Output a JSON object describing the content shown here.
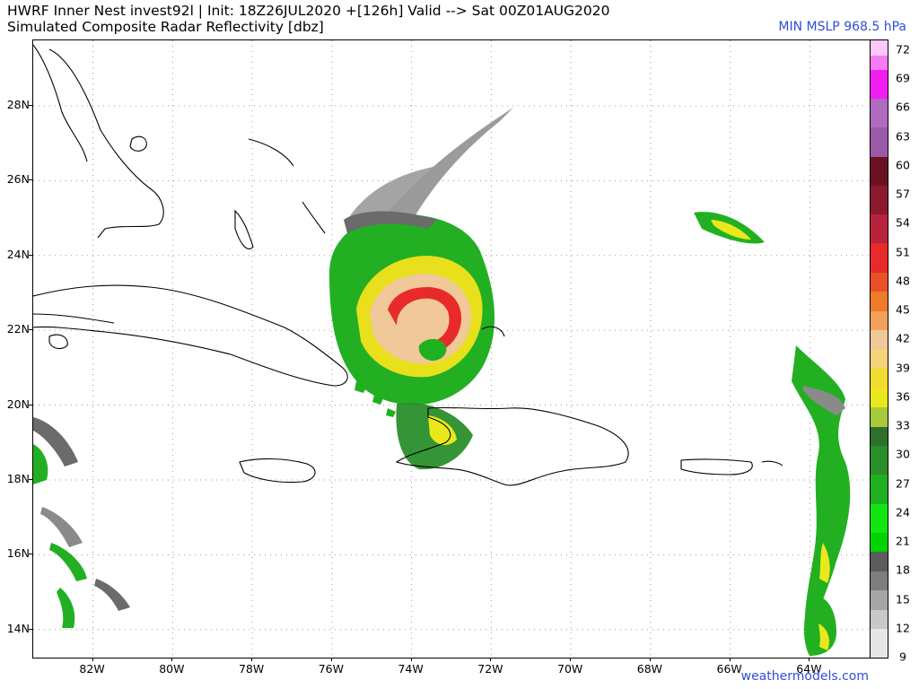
{
  "header": {
    "line1": "HWRF Inner Nest  invest92l | Init: 18Z26JUL2020 +[126h] Valid --> Sat 00Z01AUG2020",
    "line2": "Simulated Composite Radar Reflectivity [dbz]",
    "mslp": "MIN MSLP 968.5 hPa"
  },
  "map": {
    "lon_range": [
      -83.5,
      -62.5
    ],
    "lat_range": [
      13.25,
      29.75
    ],
    "lat_labels": [
      "14N",
      "16N",
      "18N",
      "20N",
      "22N",
      "24N",
      "26N",
      "28N"
    ],
    "lat_values": [
      14,
      16,
      18,
      20,
      22,
      24,
      26,
      28
    ],
    "lon_labels": [
      "82W",
      "80W",
      "78W",
      "76W",
      "74W",
      "72W",
      "70W",
      "68W",
      "66W",
      "64W"
    ],
    "lon_values": [
      -82,
      -80,
      -78,
      -76,
      -74,
      -72,
      -70,
      -68,
      -66,
      -64
    ],
    "gridlines": "dotted",
    "coastline_color": "#000000",
    "storm_center": {
      "lon": -73.3,
      "lat": 21.5
    }
  },
  "colorbar": {
    "labels": [
      "72",
      "69",
      "66",
      "63",
      "60",
      "57",
      "54",
      "51",
      "48",
      "45",
      "42",
      "39",
      "36",
      "33",
      "30",
      "27",
      "24",
      "21",
      "18",
      "15",
      "12",
      "9"
    ],
    "min": 9,
    "max": 73,
    "segments": [
      {
        "from": 9,
        "to": 12,
        "color": "#e6e6e6"
      },
      {
        "from": 12,
        "to": 14,
        "color": "#c8c8c8"
      },
      {
        "from": 14,
        "to": 16,
        "color": "#a6a6a6"
      },
      {
        "from": 16,
        "to": 18,
        "color": "#7e7e7e"
      },
      {
        "from": 18,
        "to": 20,
        "color": "#5c5c5c"
      },
      {
        "from": 20,
        "to": 22,
        "color": "#00d400"
      },
      {
        "from": 22,
        "to": 25,
        "color": "#12e612"
      },
      {
        "from": 25,
        "to": 28,
        "color": "#1fb01f"
      },
      {
        "from": 28,
        "to": 31,
        "color": "#2a8e2a"
      },
      {
        "from": 31,
        "to": 33,
        "color": "#2e6f2e"
      },
      {
        "from": 33,
        "to": 35,
        "color": "#a7c93a"
      },
      {
        "from": 35,
        "to": 37,
        "color": "#e8e81c"
      },
      {
        "from": 37,
        "to": 39,
        "color": "#f2dc30"
      },
      {
        "from": 39,
        "to": 41,
        "color": "#f6d37a"
      },
      {
        "from": 41,
        "to": 43,
        "color": "#f0c89a"
      },
      {
        "from": 43,
        "to": 45,
        "color": "#f3a15a"
      },
      {
        "from": 45,
        "to": 47,
        "color": "#ee7a2a"
      },
      {
        "from": 47,
        "to": 49,
        "color": "#ea5028"
      },
      {
        "from": 49,
        "to": 52,
        "color": "#e82a2a"
      },
      {
        "from": 52,
        "to": 55,
        "color": "#b8223a"
      },
      {
        "from": 55,
        "to": 58,
        "color": "#8c1a2e"
      },
      {
        "from": 58,
        "to": 61,
        "color": "#6a1222"
      },
      {
        "from": 61,
        "to": 64,
        "color": "#9a5aa8"
      },
      {
        "from": 64,
        "to": 67,
        "color": "#b06ac0"
      },
      {
        "from": 67,
        "to": 70,
        "color": "#f01ef0"
      },
      {
        "from": 70,
        "to": 71.5,
        "color": "#f57cf5"
      },
      {
        "from": 71.5,
        "to": 73,
        "color": "#fac8fa"
      }
    ]
  },
  "credit": "weathermodels.com"
}
